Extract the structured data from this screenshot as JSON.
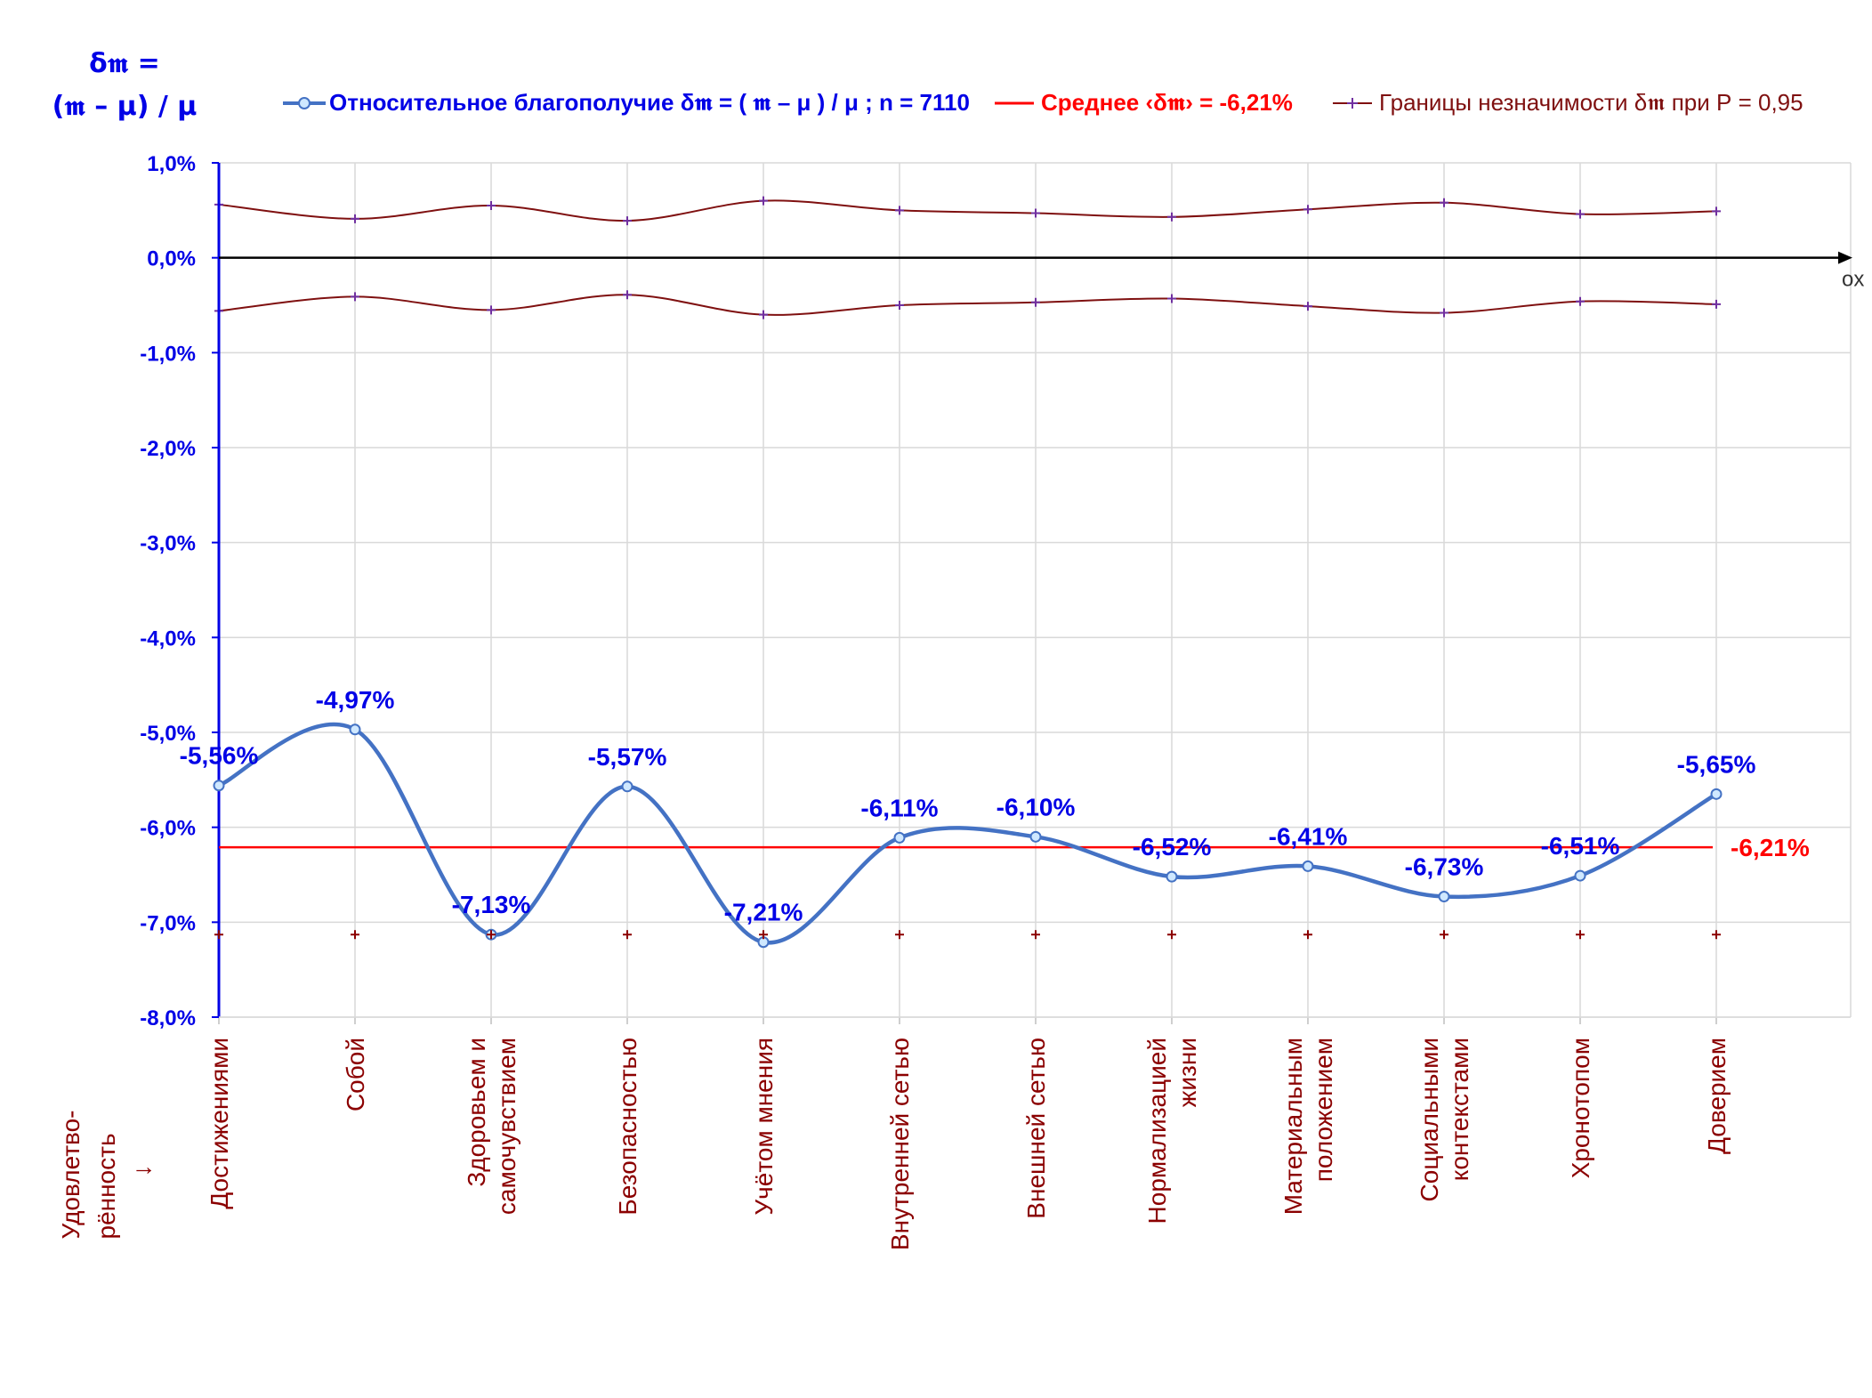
{
  "y_title_line1": "δ𝖒 =",
  "y_title_line2": "(𝖒 – μ) / μ",
  "row_title": [
    "Удовлетво-",
    "рённость",
    "↓"
  ],
  "axis_ox_label": "ox",
  "legend": {
    "series1": "Относительное благополучие δ𝖒 = ( 𝖒 – μ ) / μ ; n = 7110",
    "series2": "Среднее ‹δ𝖒› = -6,21%",
    "series3": "Границы незначимости δ𝖒 при Р = 0,95"
  },
  "colors": {
    "series1": "#4472c4",
    "series1_labels": "#0000e6",
    "mean": "#ff0000",
    "bounds": "#7f1010",
    "bound_markers": "#7030a0",
    "axis_y": "#0000e6",
    "category_text": "#8b0000"
  },
  "chart_data": {
    "type": "line",
    "categories": [
      [
        "Достижениями"
      ],
      [
        "Собой"
      ],
      [
        "Здоровьем и",
        "самочувствием"
      ],
      [
        "Безопасностью"
      ],
      [
        "Учётом мнения"
      ],
      [
        "Внутренней сетью"
      ],
      [
        "Внешней сетью"
      ],
      [
        "Нормализацией",
        "жизни"
      ],
      [
        "Материальным",
        "положением"
      ],
      [
        "Социальными",
        "контекстами"
      ],
      [
        "Хронотопом"
      ],
      [
        "Доверием"
      ]
    ],
    "series": [
      {
        "name": "Относительное благополучие δ𝖒 = ( 𝖒 – μ ) / μ ; n = 7110",
        "values": [
          -5.56,
          -4.97,
          -7.13,
          -5.57,
          -7.21,
          -6.11,
          -6.1,
          -6.52,
          -6.41,
          -6.73,
          -6.51,
          -5.65
        ],
        "labels": [
          "-5,56%",
          "-4,97%",
          "-7,13%",
          "-5,57%",
          "-7,21%",
          "-6,11%",
          "-6,10%",
          "-6,52%",
          "-6,41%",
          "-6,73%",
          "-6,51%",
          "-5,65%"
        ]
      },
      {
        "name": "Среднее ‹δ𝖒› = -6,21%",
        "value": -6.21,
        "label": "-6,21%"
      },
      {
        "name": "Границы незначимости δ𝖒 при Р = 0,95",
        "upper": [
          0.56,
          0.41,
          0.55,
          0.39,
          0.6,
          0.5,
          0.47,
          0.43,
          0.51,
          0.58,
          0.46,
          0.49
        ],
        "lower": [
          -0.56,
          -0.41,
          -0.55,
          -0.39,
          -0.6,
          -0.5,
          -0.47,
          -0.43,
          -0.51,
          -0.58,
          -0.46,
          -0.49
        ]
      }
    ],
    "bottom_markers_value": -7.13,
    "ylim": [
      -8.0,
      1.0
    ],
    "yticks": [
      "1,0%",
      "0,0%",
      "-1,0%",
      "-2,0%",
      "-3,0%",
      "-4,0%",
      "-5,0%",
      "-6,0%",
      "-7,0%",
      "-8,0%"
    ],
    "grid": true,
    "legend_position": "top"
  }
}
